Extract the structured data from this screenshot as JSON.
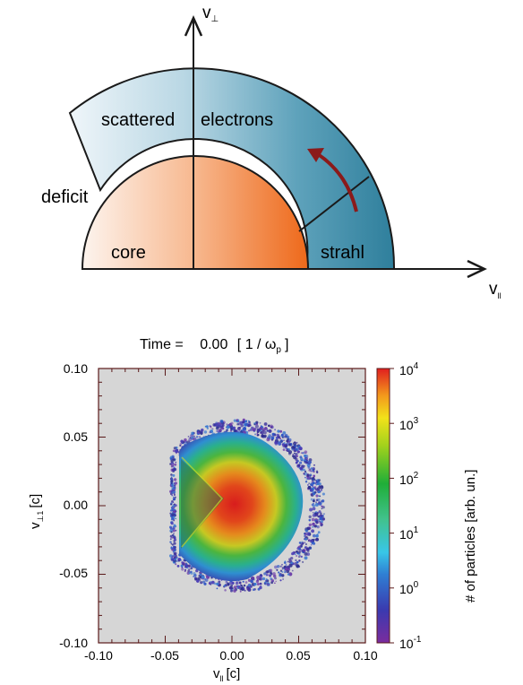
{
  "schematic": {
    "axis_perp_label": "v",
    "axis_perp_sub": "⊥",
    "axis_par_label": "v",
    "axis_par_sub": "ll",
    "regions": {
      "scattered": "scattered",
      "electrons": "electrons",
      "deficit": "deficit",
      "core": "core",
      "strahl": "strahl"
    },
    "colors": {
      "core_light": "#fdf0e8",
      "core_dark": "#ef6a1e",
      "halo_light": "#e9f2f7",
      "halo_dark": "#2f7f9c",
      "arrow": "#8b1a1a"
    }
  },
  "chart_data": {
    "type": "heatmap",
    "title_prefix": "Time =",
    "title_value": "0.00",
    "title_unit_open": "[ 1 / ω",
    "title_unit_sub": "p",
    "title_unit_close": "]",
    "xlabel": "v",
    "xlabel_sub": "ll",
    "xlabel_unit": "[c]",
    "ylabel": "v",
    "ylabel_sub": "⊥1",
    "ylabel_unit": "[c]",
    "xlim": [
      -0.1,
      0.1
    ],
    "ylim": [
      -0.1,
      0.1
    ],
    "xticks": [
      "-0.10",
      "-0.05",
      "0.00",
      "0.05",
      "0.10"
    ],
    "yticks": [
      "0.10",
      "0.05",
      "0.00",
      "-0.05",
      "-0.10"
    ],
    "colorbar": {
      "label": "# of particles [arb. un.]",
      "scale": "log",
      "range": [
        0.1,
        10000
      ],
      "tick_base": "10",
      "tick_exponents": [
        "4",
        "3",
        "2",
        "1",
        "0",
        "-1"
      ]
    },
    "distribution": {
      "description": "D-shaped velocity distribution with flat edge near v_ll = -0.04",
      "v_par_range": [
        -0.045,
        0.06
      ],
      "v_perp_range": [
        -0.06,
        0.06
      ],
      "peak_at": [
        0.0,
        0.0
      ]
    },
    "background_color": "#d6d6d6"
  }
}
